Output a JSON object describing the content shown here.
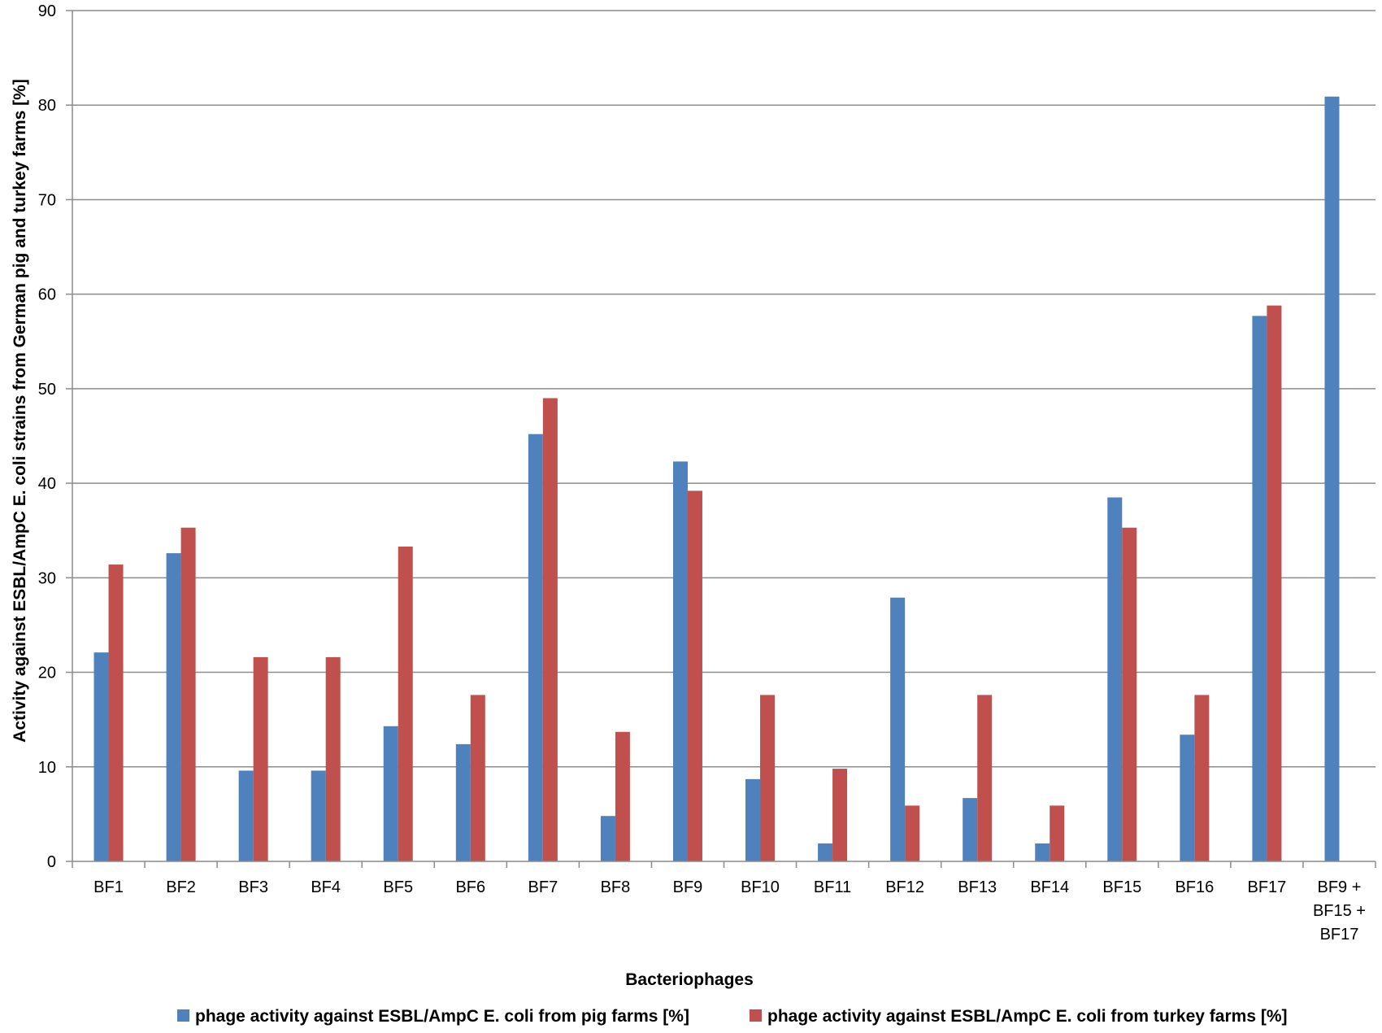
{
  "chart_data": {
    "type": "bar",
    "title": "",
    "xlabel": "Bacteriophages",
    "ylabel": "Activity against  ESBL/AmpC E. coli strains from German  pig and turkey farms [%]",
    "ylim": [
      0,
      90
    ],
    "yticks": [
      0,
      10,
      20,
      30,
      40,
      50,
      60,
      70,
      80,
      90
    ],
    "grid": true,
    "legend_position": "bottom",
    "categories": [
      [
        "BF1"
      ],
      [
        "BF2"
      ],
      [
        "BF3"
      ],
      [
        "BF4"
      ],
      [
        "BF5"
      ],
      [
        "BF6"
      ],
      [
        "BF7"
      ],
      [
        "BF8"
      ],
      [
        "BF9"
      ],
      [
        "BF10"
      ],
      [
        "BF11"
      ],
      [
        "BF12"
      ],
      [
        "BF13"
      ],
      [
        "BF14"
      ],
      [
        "BF15"
      ],
      [
        "BF16"
      ],
      [
        "BF17"
      ],
      [
        "BF9 +",
        "BF15 +",
        "BF17"
      ]
    ],
    "series": [
      {
        "name": "phage activity against ESBL/AmpC E. coli from pig farms [%]",
        "color": "#4f81bd",
        "values": [
          22.1,
          32.6,
          9.6,
          9.6,
          14.3,
          12.4,
          45.2,
          4.8,
          42.3,
          8.7,
          1.9,
          27.9,
          6.7,
          1.9,
          38.5,
          13.4,
          57.7,
          80.9
        ]
      },
      {
        "name": "phage activity against ESBL/AmpC E. coli from turkey farms [%]",
        "color": "#c0504d",
        "values": [
          31.4,
          35.3,
          21.6,
          21.6,
          33.3,
          17.6,
          49.0,
          13.7,
          39.2,
          17.6,
          9.8,
          5.9,
          17.6,
          5.9,
          35.3,
          17.6,
          58.8,
          null
        ]
      }
    ]
  }
}
